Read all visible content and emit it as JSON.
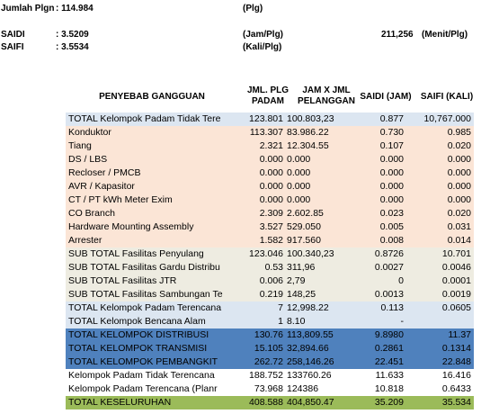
{
  "header": {
    "jumlah_label": "Jumlah Plgn",
    "jumlah_value": ": 114.984",
    "jumlah_unit": "(Plg)",
    "saidi_label": "SAIDI",
    "saidi_value": ": 3.5209",
    "saidi_unit": "(Jam/Plg)",
    "saidi_minutes": "211,256",
    "saidi_minutes_unit": "(Menit/Plg)",
    "saifi_label": "SAIFI",
    "saifi_value": ": 3.5534",
    "saifi_unit": "(Kali/Plg)"
  },
  "columns": {
    "cause": "PENYEBAB GANGGUAN",
    "jml_plg": "JML. PLG PADAM",
    "jam_x": "JAM X JML PELANGGAN",
    "saidi": "SAIDI (JAM)",
    "saifi": "SAIFI (KALI)"
  },
  "rows": [
    {
      "style": "total-light",
      "cells": [
        "TOTAL Kelompok Padam Tidak Tere",
        "123.801",
        "100.803,23",
        "0.877",
        "10,767.000"
      ]
    },
    {
      "style": "detail",
      "cells": [
        "Konduktor",
        "113.307",
        "83.986.22",
        "0.730",
        "0.985"
      ]
    },
    {
      "style": "detail",
      "cells": [
        "Tiang",
        "2.321",
        "12.304.55",
        "0.107",
        "0.020"
      ]
    },
    {
      "style": "detail",
      "cells": [
        "DS / LBS",
        "0.000",
        "0.000",
        "0.000",
        "0.000"
      ]
    },
    {
      "style": "detail",
      "cells": [
        "Recloser / PMCB",
        "0.000",
        "0.000",
        "0.000",
        "0.000"
      ]
    },
    {
      "style": "detail",
      "cells": [
        "AVR / Kapasitor",
        "0.000",
        "0.000",
        "0.000",
        "0.000"
      ]
    },
    {
      "style": "detail",
      "cells": [
        "CT / PT kWh Meter Exim",
        "0.000",
        "0.000",
        "0.000",
        "0.000"
      ]
    },
    {
      "style": "detail",
      "cells": [
        "CO Branch",
        "2.309",
        "2.602.85",
        "0.023",
        "0.020"
      ]
    },
    {
      "style": "detail",
      "cells": [
        "Hardware Mounting Assembly",
        "3.527",
        "529.050",
        "0.005",
        "0.031"
      ]
    },
    {
      "style": "detail",
      "cells": [
        "Arrester",
        "1.582",
        "917.560",
        "0.008",
        "0.014"
      ]
    },
    {
      "style": "sub",
      "cells": [
        "SUB TOTAL Fasilitas Penyulang",
        "123.046",
        "100.340,23",
        "0.8726",
        "10.701"
      ]
    },
    {
      "style": "sub",
      "cells": [
        "SUB TOTAL Fasilitas Gardu Distribu",
        "0.53",
        "311,96",
        "0.0027",
        "0.0046"
      ]
    },
    {
      "style": "sub",
      "cells": [
        "SUB TOTAL Fasilitas JTR",
        "0.006",
        "2,79",
        "0",
        "0.0001"
      ]
    },
    {
      "style": "sub",
      "cells": [
        "SUB TOTAL Fasilitas Sambungan Te",
        "0.219",
        "148,25",
        "0.0013",
        "0.0019"
      ]
    },
    {
      "style": "total-light",
      "cells": [
        "TOTAL Kelompok Padam Terencana",
        "7",
        "12,998.22",
        "0.113",
        "0.0605"
      ]
    },
    {
      "style": "total-light",
      "cells": [
        "TOTAL Kelompok Bencana Alam",
        "1",
        "8.10",
        "-",
        ""
      ]
    },
    {
      "style": "total-blue",
      "cells": [
        "TOTAL KELOMPOK DISTRIBUSI",
        "130.76",
        "113,809.55",
        "9.8980",
        "11.37"
      ]
    },
    {
      "style": "total-blue",
      "cells": [
        "TOTAL KELOMPOK TRANSMISI",
        "15.105",
        "32,894.66",
        "0.2861",
        "0.1314"
      ]
    },
    {
      "style": "total-blue",
      "cells": [
        "TOTAL KELOMPOK PEMBANGKIT",
        "262.72",
        "258,146.26",
        "22.451",
        "22.848"
      ]
    },
    {
      "style": "plain",
      "cells": [
        "Kelompok Padam Tidak Terencana",
        "188.752",
        "133760.26",
        "11.633",
        "16.416"
      ]
    },
    {
      "style": "plain",
      "cells": [
        "Kelompok Padam Terencana (Planr",
        "73.968",
        "124386",
        "10.818",
        "0.6433"
      ]
    },
    {
      "style": "grand",
      "cells": [
        "TOTAL KESELURUHAN",
        "408.588",
        "404,850.47",
        "35.209",
        "35.534"
      ]
    }
  ]
}
